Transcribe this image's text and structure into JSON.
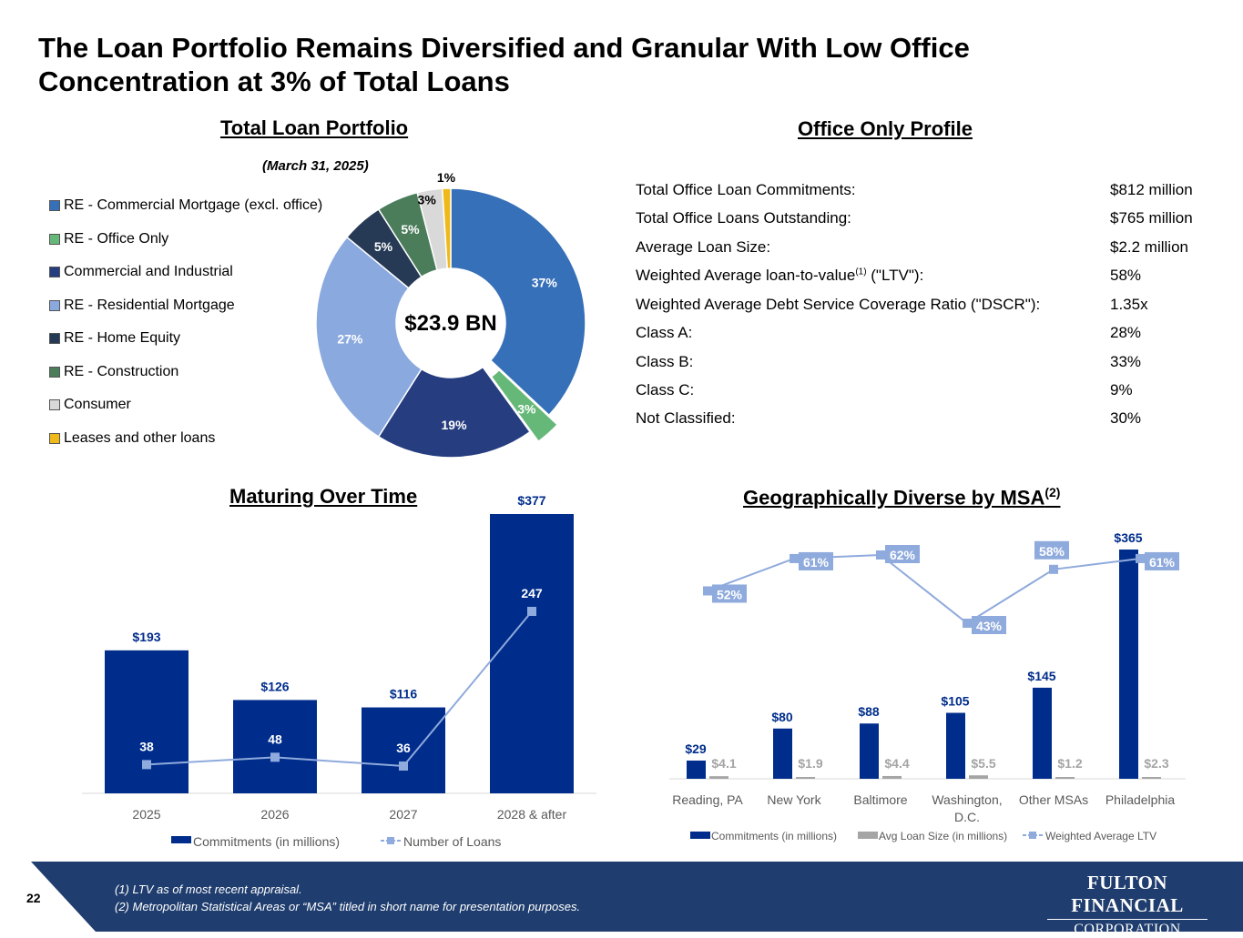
{
  "title": "The Loan Portfolio Remains Diversified and Granular With Low Office Concentration at 3% of Total Loans",
  "pie_section": {
    "title": "Total Loan Portfolio",
    "subtitle": "(March 31, 2025)",
    "center_label": "$23.9 BN"
  },
  "office_section": {
    "title": "Office Only Profile",
    "rows": [
      {
        "label": "Total Office Loan Commitments:",
        "value": "$812 million"
      },
      {
        "label": "Total Office Loans Outstanding:",
        "value": "$765 million"
      },
      {
        "label": "Average Loan Size:",
        "value": "$2.2 million"
      },
      {
        "label": "Weighted Average loan-to-value",
        "sup": "(1)",
        "label_suffix": " (\"LTV\"):",
        "value": "58%"
      },
      {
        "label": "Weighted Average Debt Service Coverage Ratio (\"DSCR\"):",
        "value": "1.35x"
      },
      {
        "label": "Class A:",
        "value": "28%"
      },
      {
        "label": "Class B:",
        "value": "33%"
      },
      {
        "label": "Class C:",
        "value": "9%"
      },
      {
        "label": "Not Classified:",
        "value": "30%"
      }
    ]
  },
  "maturing_section": {
    "title": "Maturing Over Time"
  },
  "geo_section": {
    "title": "Geographically Diverse by MSA",
    "title_sup": "(2)"
  },
  "chart_data": [
    {
      "type": "pie",
      "title": "Total Loan Portfolio",
      "subtitle": "(March 31, 2025)",
      "center_label": "$23.9 BN",
      "labels": [
        "RE - Commercial Mortgage (excl. office)",
        "RE - Office Only",
        "Commercial and Industrial",
        "RE - Residential Mortgage",
        "RE - Home Equity",
        "RE - Construction",
        "Consumer",
        "Leases and other loans"
      ],
      "values": [
        37,
        3,
        19,
        27,
        5,
        5,
        3,
        1
      ],
      "value_labels": [
        "37%",
        "3%",
        "19%",
        "27%",
        "5%",
        "5%",
        "3%",
        "1%"
      ],
      "colors": [
        "#3670b8",
        "#66b879",
        "#263d7f",
        "#8aa9df",
        "#263a55",
        "#4b7d5b",
        "#d9d9d9",
        "#f0b91a"
      ],
      "exploded_index": 1,
      "legend_position": "left"
    },
    {
      "type": "bar",
      "title": "Maturing Over Time",
      "categories": [
        "2025",
        "2026",
        "2027",
        "2028 & after"
      ],
      "series": [
        {
          "name": "Commitments (in millions)",
          "kind": "bar",
          "values": [
            193,
            126,
            116,
            377
          ],
          "value_labels": [
            "$193",
            "$126",
            "$116",
            "$377"
          ],
          "color": "#002d8b"
        },
        {
          "name": "Number of Loans",
          "kind": "line",
          "values": [
            38,
            48,
            36,
            247
          ],
          "value_labels": [
            "38",
            "48",
            "36",
            "247"
          ],
          "color": "#8faadc"
        }
      ],
      "legend_position": "bottom"
    },
    {
      "type": "bar",
      "title": "Geographically Diverse by MSA",
      "categories": [
        "Reading, PA",
        "New York",
        "Baltimore",
        "Washington, D.C.",
        "Other MSAs",
        "Philadelphia"
      ],
      "category_lines": [
        [
          "Reading, PA"
        ],
        [
          "New York"
        ],
        [
          "Baltimore"
        ],
        [
          "Washington,",
          "D.C."
        ],
        [
          "Other MSAs"
        ],
        [
          "Philadelphia"
        ]
      ],
      "series": [
        {
          "name": "Commitments (in millions)",
          "kind": "bar",
          "values": [
            29,
            80,
            88,
            105,
            145,
            365
          ],
          "value_labels": [
            "$29",
            "$80",
            "$88",
            "$105",
            "$145",
            "$365"
          ],
          "color": "#002d8b"
        },
        {
          "name": "Avg Loan Size (in millions)",
          "kind": "bar",
          "values": [
            4.1,
            1.9,
            4.4,
            5.5,
            1.2,
            2.3
          ],
          "value_labels": [
            "$4.1",
            "$1.9",
            "$4.4",
            "$5.5",
            "$1.2",
            "$2.3"
          ],
          "color": "#a5a5a5"
        },
        {
          "name": "Weighted Average LTV",
          "kind": "line",
          "values": [
            52,
            61,
            62,
            43,
            58,
            61
          ],
          "value_labels": [
            "52%",
            "61%",
            "62%",
            "43%",
            "58%",
            "61%"
          ],
          "color": "#8faadc"
        }
      ],
      "legend_position": "bottom"
    }
  ],
  "footer": {
    "page_number": "22",
    "notes": [
      "(1) LTV as of most recent appraisal.",
      "(2) Metropolitan Statistical Areas or “MSA” titled in short name for presentation purposes."
    ],
    "logo_line1": "FULTON FINANCIAL",
    "logo_line2": "CORPORATION"
  },
  "colors": {
    "navy": "#002d8b",
    "light_blue": "#8faadc",
    "footer_band": "#1f3d6e"
  }
}
